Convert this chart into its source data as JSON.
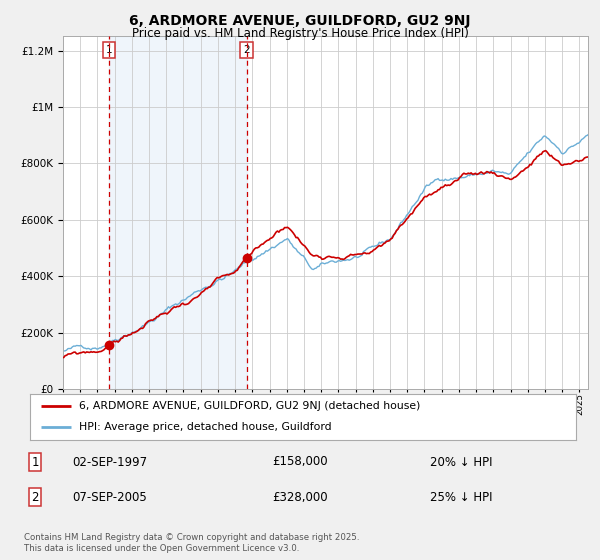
{
  "title": "6, ARDMORE AVENUE, GUILDFORD, GU2 9NJ",
  "subtitle": "Price paid vs. HM Land Registry's House Price Index (HPI)",
  "legend_line1": "6, ARDMORE AVENUE, GUILDFORD, GU2 9NJ (detached house)",
  "legend_line2": "HPI: Average price, detached house, Guildford",
  "marker1_date": "02-SEP-1997",
  "marker1_price": "£158,000",
  "marker1_hpi": "20% ↓ HPI",
  "marker2_date": "07-SEP-2005",
  "marker2_price": "£328,000",
  "marker2_hpi": "25% ↓ HPI",
  "footer": "Contains HM Land Registry data © Crown copyright and database right 2025.\nThis data is licensed under the Open Government Licence v3.0.",
  "line_color_red": "#cc0000",
  "line_color_blue": "#6baed6",
  "fill_color": "#ddeeff",
  "dashed_line_color": "#cc0000",
  "background_color": "#f0f0f0",
  "plot_background": "#ffffff",
  "ylim": [
    0,
    1250000
  ],
  "xlim_start": 1995.0,
  "xlim_end": 2025.5,
  "marker1_x": 1997.67,
  "marker1_y": 158000,
  "marker2_x": 2005.67,
  "marker2_y": 328000,
  "hpi_seed": 42,
  "prop_seed": 99
}
